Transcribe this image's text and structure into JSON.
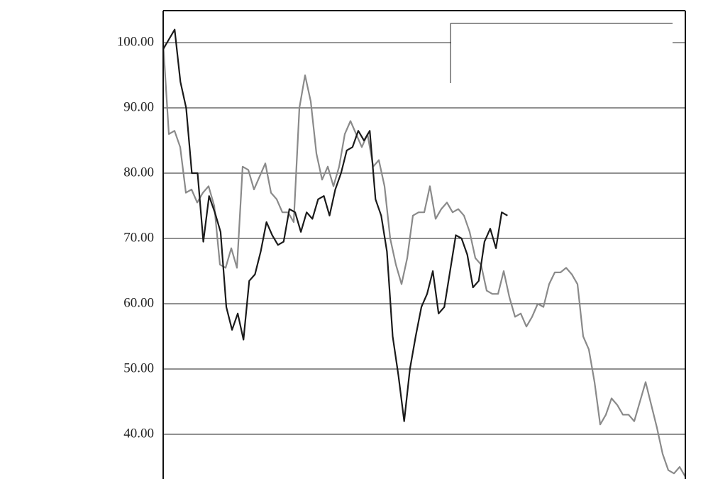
{
  "chart_data": {
    "type": "line",
    "ylim": [
      33.15,
      104.9
    ],
    "yticks": [
      {
        "value": 40,
        "label": "40.00"
      },
      {
        "value": 50,
        "label": "50.00"
      },
      {
        "value": 60,
        "label": "60.00"
      },
      {
        "value": 70,
        "label": "70.00"
      },
      {
        "value": 80,
        "label": "80.00"
      },
      {
        "value": 90,
        "label": "90.00"
      },
      {
        "value": 100,
        "label": "100.00"
      }
    ],
    "grid": true,
    "series": [
      {
        "color": "#8a8a8a",
        "values": [
          100,
          86,
          86.5,
          84,
          77,
          77.5,
          75.5,
          77,
          78,
          75,
          66,
          65.5,
          68.5,
          65.5,
          81,
          80.5,
          77.5,
          79.5,
          81.5,
          77,
          76,
          74,
          74,
          72.5,
          90,
          95,
          91,
          83,
          79,
          81,
          78,
          81,
          86,
          88,
          86,
          84,
          86,
          81,
          82,
          78,
          70,
          66,
          63,
          67,
          73.5,
          74,
          74,
          78,
          73,
          74.5,
          75.5,
          74,
          74.5,
          73.5,
          71,
          67,
          66,
          62,
          61.5,
          61.5,
          65,
          61,
          58,
          58.5,
          56.5,
          58,
          60,
          59.5,
          63,
          64.8,
          64.8,
          65.5,
          64.5,
          63,
          55,
          53,
          48,
          41.5,
          43,
          45.5,
          44.5,
          43,
          43,
          42,
          45,
          48,
          44.5,
          41,
          37,
          34.5,
          34,
          35,
          33.5
        ]
      },
      {
        "color": "#1a1a1a",
        "values": [
          99,
          100.5,
          102,
          94,
          90,
          80,
          80,
          69.5,
          76.5,
          74,
          71,
          59.5,
          56,
          58.5,
          54.5,
          63.5,
          64.5,
          68,
          72.5,
          70.5,
          69,
          69.5,
          74.5,
          74,
          71,
          74,
          73,
          76,
          76.5,
          73.5,
          77.5,
          80,
          83.5,
          84,
          86.5,
          85,
          86.5,
          76,
          73.5,
          68,
          55,
          49,
          42,
          50,
          55,
          59.5,
          61.5,
          65,
          58.5,
          59.5,
          65,
          70.5,
          70,
          67.5,
          62.5,
          63.5,
          69.5,
          71.5,
          68.5,
          74,
          73.5,
          null,
          null,
          null,
          null,
          null,
          null,
          null,
          null,
          null,
          null,
          null,
          null,
          null,
          null,
          null,
          null,
          null,
          null,
          null,
          null,
          null,
          null,
          null,
          null,
          null,
          null,
          null,
          null,
          null,
          null,
          null
        ]
      }
    ]
  }
}
